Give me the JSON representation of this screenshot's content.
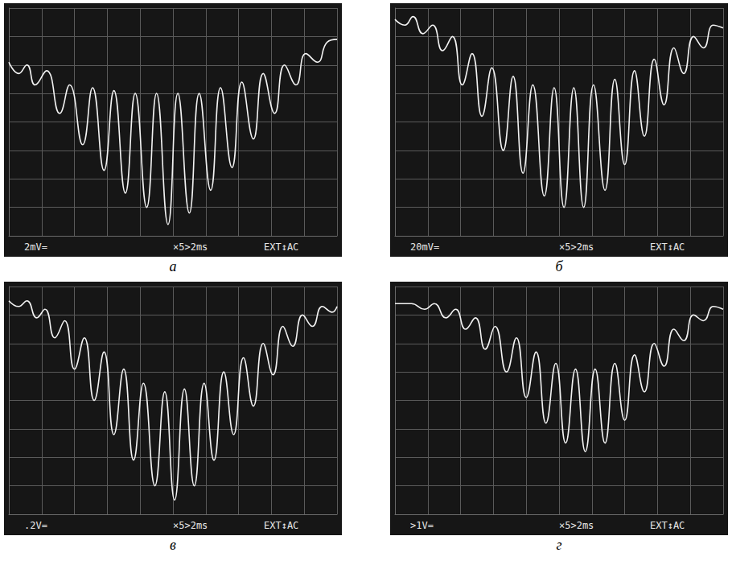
{
  "chart_data": [
    {
      "type": "line",
      "title": "а",
      "annotations": [
        "2mV=",
        "×5>2ms",
        "EXT↕AC"
      ],
      "color": "#f2f2f2",
      "x": [
        0.0,
        0.3,
        0.55,
        0.8,
        1.15,
        1.55,
        1.85,
        2.25,
        2.55,
        2.9,
        3.2,
        3.55,
        3.85,
        4.2,
        4.5,
        4.85,
        5.15,
        5.5,
        5.8,
        6.15,
        6.45,
        6.8,
        7.1,
        7.45,
        7.75,
        8.1,
        8.4,
        8.75,
        9.05,
        9.4,
        9.7,
        10.0
      ],
      "values": [
        6.1,
        5.7,
        6.0,
        5.3,
        5.8,
        4.3,
        5.3,
        3.2,
        5.2,
        2.3,
        5.1,
        1.5,
        5.0,
        1.0,
        5.0,
        0.4,
        5.0,
        0.8,
        5.0,
        1.6,
        5.2,
        2.4,
        5.4,
        3.4,
        5.7,
        4.3,
        6.0,
        5.3,
        6.4,
        6.1,
        6.8,
        6.9
      ],
      "xlim": [
        0,
        10
      ],
      "ylim": [
        0,
        8
      ],
      "xticks": [
        0,
        1,
        2,
        3,
        4,
        5,
        6,
        7,
        8,
        9,
        10
      ],
      "yticks": [
        0,
        1,
        2,
        3,
        4,
        5,
        6,
        7,
        8
      ],
      "grid": true,
      "tick_labels": false
    },
    {
      "type": "line",
      "title": "б",
      "annotations": [
        "20mV=",
        "×5>2ms",
        "EXT↕AC"
      ],
      "color": "#f2f2f2",
      "x": [
        0.0,
        0.3,
        0.55,
        0.85,
        1.15,
        1.45,
        1.75,
        2.05,
        2.35,
        2.65,
        2.95,
        3.3,
        3.6,
        3.9,
        4.2,
        4.55,
        4.85,
        5.15,
        5.45,
        5.75,
        6.05,
        6.4,
        6.7,
        7.0,
        7.3,
        7.6,
        7.9,
        8.2,
        8.5,
        8.8,
        9.1,
        9.4,
        9.7,
        10.0
      ],
      "values": [
        7.6,
        7.4,
        7.7,
        7.1,
        7.4,
        6.5,
        7.0,
        5.3,
        6.4,
        4.2,
        5.9,
        3.0,
        5.6,
        2.2,
        5.3,
        1.4,
        5.2,
        1.0,
        5.2,
        1.0,
        5.3,
        1.6,
        5.5,
        2.5,
        5.8,
        3.5,
        6.2,
        4.6,
        6.6,
        5.7,
        7.0,
        6.6,
        7.4,
        7.3
      ],
      "xlim": [
        0,
        10
      ],
      "ylim": [
        0,
        8
      ],
      "xticks": [
        0,
        1,
        2,
        3,
        4,
        5,
        6,
        7,
        8,
        9,
        10
      ],
      "yticks": [
        0,
        1,
        2,
        3,
        4,
        5,
        6,
        7,
        8
      ],
      "grid": true,
      "tick_labels": false
    },
    {
      "type": "line",
      "title": "в",
      "annotations": [
        ".2V=",
        "×5>2ms",
        "EXT↕AC"
      ],
      "color": "#f2f2f2",
      "x": [
        0.0,
        0.3,
        0.55,
        0.85,
        1.1,
        1.4,
        1.7,
        2.0,
        2.3,
        2.6,
        2.9,
        3.2,
        3.5,
        3.8,
        4.1,
        4.45,
        4.75,
        5.05,
        5.35,
        5.65,
        5.95,
        6.25,
        6.55,
        6.85,
        7.15,
        7.45,
        7.75,
        8.05,
        8.35,
        8.65,
        8.95,
        9.25,
        9.55,
        9.85,
        10.0
      ],
      "values": [
        7.5,
        7.3,
        7.5,
        6.9,
        7.2,
        6.2,
        6.8,
        5.1,
        6.2,
        4.0,
        5.7,
        2.8,
        5.1,
        1.9,
        4.6,
        1.0,
        4.3,
        0.5,
        4.4,
        1.0,
        4.6,
        1.9,
        5.0,
        2.8,
        5.5,
        3.8,
        6.0,
        4.9,
        6.6,
        5.9,
        7.0,
        6.6,
        7.3,
        7.1,
        7.3
      ],
      "xlim": [
        0,
        10
      ],
      "ylim": [
        0,
        8
      ],
      "xticks": [
        0,
        1,
        2,
        3,
        4,
        5,
        6,
        7,
        8,
        9,
        10
      ],
      "yticks": [
        0,
        1,
        2,
        3,
        4,
        5,
        6,
        7,
        8
      ],
      "grid": true,
      "tick_labels": false
    },
    {
      "type": "line",
      "title": "г",
      "annotations": [
        ">1V=",
        "×5>2ms",
        "EXT↕AC"
      ],
      "color": "#f2f2f2",
      "x": [
        0.0,
        0.5,
        0.9,
        1.2,
        1.55,
        1.85,
        2.15,
        2.45,
        2.75,
        3.05,
        3.4,
        3.7,
        4.0,
        4.3,
        4.6,
        4.9,
        5.2,
        5.5,
        5.8,
        6.1,
        6.4,
        6.7,
        7.0,
        7.3,
        7.6,
        7.9,
        8.2,
        8.5,
        8.8,
        9.1,
        9.4,
        9.7,
        10.0
      ],
      "values": [
        7.4,
        7.4,
        7.2,
        7.4,
        6.9,
        7.2,
        6.5,
        6.9,
        5.8,
        6.6,
        5.0,
        6.2,
        4.1,
        5.7,
        3.2,
        5.3,
        2.5,
        5.1,
        2.2,
        5.1,
        2.5,
        5.3,
        3.3,
        5.6,
        4.3,
        6.0,
        5.2,
        6.5,
        6.1,
        7.0,
        6.8,
        7.3,
        7.2
      ],
      "xlim": [
        0,
        10
      ],
      "ylim": [
        0,
        8
      ],
      "xticks": [
        0,
        1,
        2,
        3,
        4,
        5,
        6,
        7,
        8,
        9,
        10
      ],
      "yticks": [
        0,
        1,
        2,
        3,
        4,
        5,
        6,
        7,
        8
      ],
      "grid": true,
      "tick_labels": false
    }
  ]
}
